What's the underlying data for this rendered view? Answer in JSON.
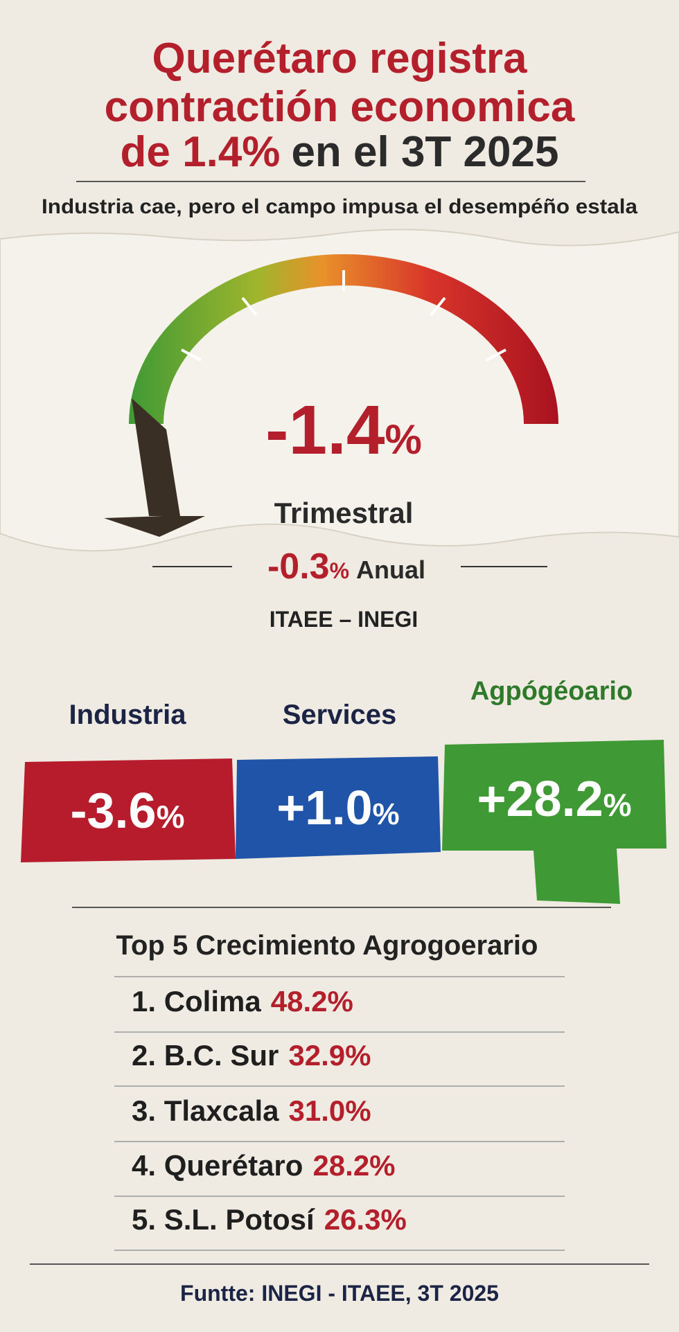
{
  "header": {
    "title_line1": "Querétaro registra",
    "title_line2": "contractión economica",
    "title_line3_red": "de 1.4%",
    "title_line3_dark": "en el 3T 2025",
    "subtitle": "Industria cae, pero el campo impusa el desempéño estala"
  },
  "gauge": {
    "main_value": "-1.4",
    "main_unit": "%",
    "main_label": "Trimestral",
    "annual_value": "-0.3",
    "annual_unit": "%",
    "annual_label": "Anual",
    "source": "ITAEE – INEGI"
  },
  "sectors": [
    {
      "name": "Industria",
      "value": "-3.6",
      "unit": "%"
    },
    {
      "name": "Services",
      "value": "+1.0",
      "unit": "%"
    },
    {
      "name": "Agpógéoario",
      "value": "+28.2",
      "unit": "%"
    }
  ],
  "top5": {
    "title": "Top 5 Crecimiento Agrogoerario",
    "rows": [
      {
        "name": "1. Colima",
        "value": "48.2%"
      },
      {
        "name": "2. B.C. Sur",
        "value": "32.9%"
      },
      {
        "name": "3. Tlaxcala",
        "value": "31.0%"
      },
      {
        "name": "4. Querétaro",
        "value": "28.2%"
      },
      {
        "name": "5. S.L. Potosí",
        "value": "26.3%"
      }
    ]
  },
  "footer": "Funtte: INEGI - ITAEE, 3T 2025"
}
